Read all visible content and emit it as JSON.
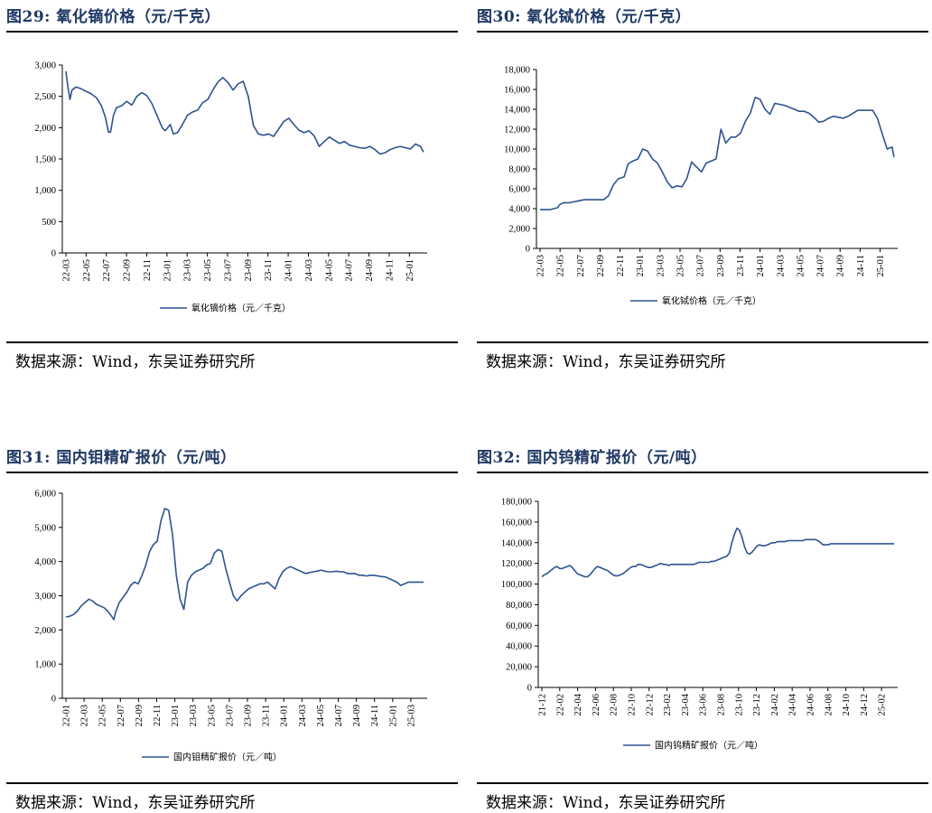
{
  "charts": [
    {
      "id": "p29",
      "fig_no": "图29:",
      "title": "氧化镝价格（元/千克）",
      "source": "数据来源：Wind，东吴证券研究所",
      "chart_data": {
        "type": "line",
        "ylim": [
          0,
          3000
        ],
        "yticks": [
          "0",
          "500",
          "1,000",
          "1,500",
          "2,000",
          "2,500",
          "3,000"
        ],
        "xticks": [
          "22-03",
          "22-05",
          "22-07",
          "22-09",
          "22-11",
          "23-01",
          "23-03",
          "23-05",
          "23-07",
          "23-09",
          "23-11",
          "24-01",
          "24-03",
          "24-05",
          "24-07",
          "24-09",
          "24-11",
          "25-01"
        ],
        "series": [
          {
            "name": "氧化镝价格（元／千克）",
            "x": [
              0,
              0.2,
              0.4,
              0.6,
              1,
              1.5,
              2,
              2.5,
              3,
              3.5,
              3.9,
              4.2,
              4.4,
              4.7,
              5,
              5.5,
              6,
              6.5,
              7,
              7.5,
              8,
              8.5,
              9,
              9.5,
              9.8,
              10,
              10.3,
              10.6,
              11,
              11.5,
              12,
              12.5,
              13,
              13.5,
              14,
              14.5,
              15,
              15.5,
              16,
              16.5,
              17,
              17.5,
              18,
              18.5,
              19,
              19.5,
              20,
              20.5,
              21,
              21.5,
              22,
              22.5,
              23,
              23.5,
              24,
              24.5,
              25,
              25.5,
              26,
              26.5,
              27,
              27.5,
              28,
              28.5,
              29,
              29.5,
              30,
              30.5,
              31,
              31.5,
              32,
              32.5,
              33,
              33.5,
              34,
              34.5,
              35,
              35.3
            ],
            "values": [
              2900,
              2650,
              2450,
              2600,
              2650,
              2620,
              2580,
              2540,
              2480,
              2350,
              2160,
              1930,
              1930,
              2200,
              2320,
              2350,
              2420,
              2360,
              2500,
              2560,
              2510,
              2380,
              2190,
              2000,
              1950,
              1990,
              2050,
              1900,
              1920,
              2050,
              2200,
              2250,
              2280,
              2400,
              2450,
              2600,
              2730,
              2800,
              2720,
              2600,
              2700,
              2740,
              2500,
              2040,
              1900,
              1880,
              1900,
              1860,
              1980,
              2100,
              2150,
              2050,
              1960,
              1920,
              1950,
              1870,
              1700,
              1780,
              1850,
              1800,
              1750,
              1780,
              1720,
              1700,
              1680,
              1670,
              1700,
              1650,
              1580,
              1600,
              1650,
              1680,
              1700,
              1680,
              1660,
              1740,
              1700,
              1610
            ]
          }
        ]
      }
    },
    {
      "id": "p30",
      "fig_no": "图30:",
      "title": "氧化铽价格（元/千克）",
      "source": "数据来源：Wind，东吴证券研究所",
      "chart_data": {
        "type": "line",
        "ylim": [
          0,
          18000
        ],
        "yticks": [
          "0",
          "2,000",
          "4,000",
          "6,000",
          "8,000",
          "10,000",
          "12,000",
          "14,000",
          "16,000",
          "18,000"
        ],
        "xticks": [
          "22-03",
          "22-05",
          "22-07",
          "22-09",
          "22-11",
          "23-01",
          "23-03",
          "23-05",
          "23-07",
          "23-09",
          "23-11",
          "24-01",
          "24-03",
          "24-05",
          "24-07",
          "24-09",
          "24-11",
          "25-01"
        ],
        "series": [
          {
            "name": "氧化铽价格（元／千克）",
            "x": [
              0,
              1,
              1.8,
              2,
              2.4,
              3,
              4,
              4.5,
              5,
              6,
              6.5,
              7,
              7.5,
              8,
              8.6,
              9,
              9.5,
              10,
              10.5,
              11,
              11.5,
              12,
              12.5,
              13,
              13.5,
              14,
              14.5,
              15,
              15.5,
              16,
              16.5,
              17,
              17.5,
              18,
              18.5,
              19,
              19.5,
              20,
              20.5,
              21,
              21.5,
              22,
              22.5,
              23,
              23.5,
              24,
              24.5,
              25,
              25.5,
              26,
              26.5,
              27,
              27.5,
              28,
              28.5,
              29,
              29.5,
              30,
              30.5,
              31,
              31.5,
              32,
              32.5,
              33,
              33.5,
              34,
              34.5,
              35,
              35.5,
              36,
              36.2
            ],
            "values": [
              3900,
              3900,
              4100,
              4400,
              4600,
              4600,
              4800,
              4900,
              4900,
              4900,
              4900,
              5300,
              6400,
              7000,
              7200,
              8500,
              8800,
              9000,
              10000,
              9800,
              9000,
              8600,
              7700,
              6700,
              6100,
              6300,
              6200,
              7000,
              8700,
              8200,
              7700,
              8600,
              8800,
              9000,
              12000,
              10600,
              11200,
              11200,
              11600,
              12800,
              13600,
              15200,
              15000,
              14000,
              13500,
              14600,
              14500,
              14400,
              14200,
              14000,
              13800,
              13800,
              13600,
              13200,
              12700,
              12800,
              13100,
              13300,
              13200,
              13100,
              13300,
              13600,
              13900,
              13900,
              13900,
              13900,
              13100,
              11500,
              10000,
              10200,
              9200
            ]
          }
        ]
      }
    },
    {
      "id": "p31",
      "fig_no": "图31:",
      "title": "国内钼精矿报价（元/吨）",
      "source": "数据来源：Wind，东吴证券研究所",
      "chart_data": {
        "type": "line",
        "ylim": [
          0,
          6000
        ],
        "yticks": [
          "0",
          "1,000",
          "2,000",
          "3,000",
          "4,000",
          "5,000",
          "6,000"
        ],
        "xticks": [
          "22-01",
          "22-03",
          "22-05",
          "22-07",
          "22-09",
          "22-11",
          "23-01",
          "23-03",
          "23-05",
          "23-07",
          "23-09",
          "23-11",
          "24-01",
          "24-03",
          "24-05",
          "24-07",
          "24-09",
          "24-11",
          "25-01",
          "25-03"
        ],
        "series": [
          {
            "name": "国内钼精矿报价（元／吨）",
            "x": [
              0,
              0.5,
              1,
              1.5,
              2,
              2.5,
              3,
              3.5,
              4,
              4.5,
              5,
              5.5,
              6,
              6.3,
              6.5,
              7,
              7.5,
              8,
              8.5,
              9,
              9.5,
              10,
              10.5,
              11,
              11.5,
              12,
              12.5,
              13,
              13.5,
              14,
              14.5,
              15,
              15.5,
              16,
              16.5,
              17,
              17.5,
              18,
              18.5,
              19,
              19.5,
              20,
              20.5,
              21,
              21.5,
              22,
              22.5,
              23,
              23.5,
              24,
              24.5,
              25,
              25.5,
              26,
              26.5,
              27,
              27.5,
              28,
              28.5,
              29,
              29.5,
              30,
              30.5,
              31,
              31.5,
              32,
              32.5,
              33,
              33.5,
              34,
              34.5,
              35,
              35.5,
              36,
              36.5,
              37,
              37.5,
              38,
              38.5,
              39,
              39.5,
              40,
              40.5,
              41,
              41.5,
              42,
              42.5,
              43,
              43.5,
              44,
              44.5,
              45,
              45.5,
              46,
              46.5,
              47
            ],
            "values": [
              2380,
              2400,
              2450,
              2550,
              2700,
              2800,
              2900,
              2850,
              2750,
              2700,
              2650,
              2550,
              2400,
              2300,
              2500,
              2800,
              2950,
              3100,
              3300,
              3400,
              3350,
              3600,
              3900,
              4300,
              4500,
              4600,
              5200,
              5550,
              5500,
              4800,
              3600,
              2900,
              2600,
              3400,
              3600,
              3700,
              3750,
              3800,
              3900,
              3950,
              4250,
              4350,
              4300,
              3800,
              3400,
              3000,
              2850,
              3000,
              3100,
              3200,
              3250,
              3300,
              3350,
              3350,
              3400,
              3300,
              3200,
              3500,
              3700,
              3800,
              3850,
              3800,
              3750,
              3700,
              3650,
              3680,
              3700,
              3720,
              3750,
              3720,
              3700,
              3700,
              3720,
              3700,
              3700,
              3650,
              3650,
              3650,
              3600,
              3600,
              3580,
              3600,
              3600,
              3580,
              3560,
              3550,
              3500,
              3450,
              3400,
              3300,
              3350,
              3400,
              3400,
              3400,
              3400,
              3400
            ]
          }
        ]
      }
    },
    {
      "id": "p32",
      "fig_no": "图32:",
      "title": "国内钨精矿报价（元/吨）",
      "source": "数据来源：Wind，东吴证券研究所",
      "chart_data": {
        "type": "line",
        "ylim": [
          0,
          180000
        ],
        "yticks": [
          "0",
          "20,000",
          "40,000",
          "60,000",
          "80,000",
          "100,000",
          "120,000",
          "140,000",
          "160,000",
          "180,000"
        ],
        "xticks": [
          "21-12",
          "22-02",
          "22-04",
          "22-06",
          "22-08",
          "22-10",
          "22-12",
          "23-02",
          "23-04",
          "23-06",
          "23-08",
          "23-10",
          "23-12",
          "24-02",
          "24-04",
          "24-06",
          "24-08",
          "24-10",
          "24-12",
          "25-02"
        ],
        "series": [
          {
            "name": "国内钨精矿报价（元／吨）",
            "x": [
              0,
              1,
              2,
              3,
              4,
              5,
              6,
              7,
              8,
              9,
              10,
              11,
              12,
              13,
              14,
              15,
              16,
              17,
              18,
              19,
              20,
              21,
              22,
              23,
              24,
              25,
              26,
              27,
              28,
              29,
              30,
              31,
              32,
              33,
              34,
              35,
              36,
              37,
              38,
              39,
              40,
              41,
              42,
              43,
              44,
              45,
              46,
              47,
              48,
              49,
              50,
              51,
              52,
              53,
              54,
              55,
              56,
              57,
              58,
              59,
              60,
              61,
              62,
              63,
              64,
              65,
              66,
              67,
              68,
              69,
              70,
              71,
              72,
              73,
              74,
              75,
              76,
              77,
              78,
              79,
              80,
              81,
              82,
              83,
              84,
              85,
              86,
              87,
              88,
              89,
              90,
              91,
              92,
              93,
              94,
              95,
              96,
              97,
              98,
              99,
              100,
              101,
              102,
              103,
              104,
              105,
              106,
              107,
              108,
              109,
              110,
              111,
              112,
              113,
              114,
              115,
              116,
              117,
              118,
              119,
              120,
              121,
              122,
              123,
              124,
              125,
              126,
              127,
              128,
              129,
              130,
              131,
              132,
              133,
              134,
              135,
              136,
              137,
              138,
              139
            ],
            "values": [
              107000,
              109000,
              110000,
              112000,
              114000,
              116000,
              117000,
              115000,
              115000,
              116000,
              117000,
              118000,
              116000,
              113000,
              110000,
              109000,
              108000,
              107000,
              107000,
              109000,
              112000,
              115000,
              117000,
              116000,
              115000,
              114000,
              113000,
              111000,
              109000,
              108000,
              108000,
              109000,
              110000,
              112000,
              114000,
              116000,
              117000,
              117000,
              119000,
              119000,
              118000,
              117000,
              116000,
              116000,
              117000,
              118000,
              119000,
              120000,
              119000,
              119000,
              118000,
              119000,
              119000,
              119000,
              119000,
              119000,
              119000,
              119000,
              119000,
              119000,
              119000,
              120000,
              121000,
              121000,
              121000,
              121000,
              121000,
              122000,
              122000,
              123000,
              124000,
              125000,
              126000,
              127000,
              130000,
              140000,
              148000,
              154000,
              152000,
              145000,
              136000,
              130000,
              129000,
              131000,
              134000,
              137000,
              138000,
              137000,
              137000,
              138000,
              139000,
              140000,
              140000,
              141000,
              141000,
              141000,
              141000,
              142000,
              142000,
              142000,
              142000,
              142000,
              142000,
              142000,
              143000,
              143000,
              143000,
              143000,
              143000,
              142000,
              140000,
              138000,
              138000,
              138000,
              139000,
              139000,
              139000,
              139000,
              139000,
              139000,
              139000,
              139000,
              139000,
              139000,
              139000,
              139000,
              139000,
              139000,
              139000,
              139000,
              139000,
              139000,
              139000,
              139000,
              139000,
              139000,
              139000,
              139000,
              139000,
              139000
            ]
          }
        ]
      }
    }
  ]
}
